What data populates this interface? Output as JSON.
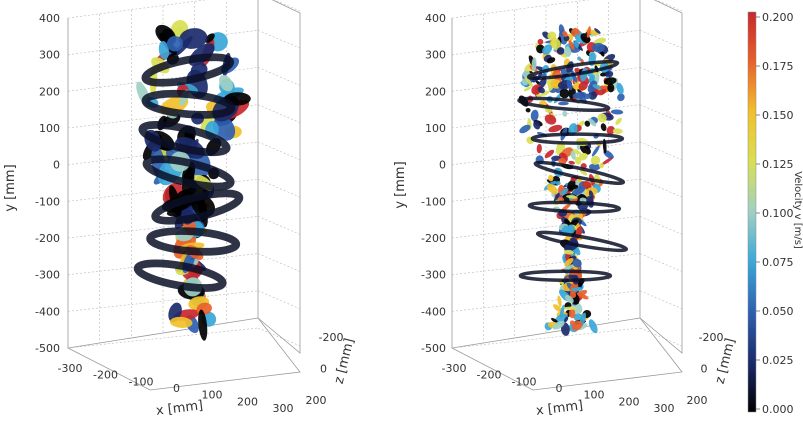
{
  "chart_data": [
    {
      "type": "3d-isosurface",
      "panel": "left",
      "xlabel": "x [mm]",
      "ylabel": "y [mm]",
      "zlabel": "z [mm]",
      "x_ticks": [
        "-300",
        "-200",
        "-100",
        "0",
        "100",
        "200",
        "300"
      ],
      "y_ticks": [
        "400",
        "300",
        "200",
        "100",
        "0",
        "-100",
        "-200",
        "-300",
        "-400",
        "-500"
      ],
      "z_ticks": [
        "-200",
        "0",
        "200"
      ],
      "x_range": [
        -300,
        300
      ],
      "y_range": [
        -500,
        400
      ],
      "z_range": [
        -200,
        200
      ]
    },
    {
      "type": "3d-isosurface",
      "panel": "right",
      "xlabel": "x [mm]",
      "ylabel": "y [mm]",
      "zlabel": "z [mm]",
      "x_ticks": [
        "-300",
        "-200",
        "-100",
        "0",
        "100",
        "200",
        "300"
      ],
      "y_ticks": [
        "400",
        "300",
        "200",
        "100",
        "0",
        "-100",
        "-200",
        "-300",
        "-400",
        "-500"
      ],
      "z_ticks": [
        "-200",
        "0",
        "200"
      ],
      "x_range": [
        -300,
        300
      ],
      "y_range": [
        -500,
        400
      ],
      "z_range": [
        -200,
        200
      ],
      "colorbar": {
        "label": "Velocity v [m/s]",
        "min": 0.0,
        "max": 0.2,
        "ticks": [
          "0.200",
          "0.175",
          "0.150",
          "0.125",
          "0.100",
          "0.075",
          "0.050",
          "0.025",
          "0.000"
        ],
        "colors": [
          "#000000",
          "#1b2a6b",
          "#2f5fb0",
          "#3aa7d8",
          "#9fd0c4",
          "#d8df55",
          "#f2c02a",
          "#e8612b",
          "#c8272c"
        ]
      }
    }
  ]
}
